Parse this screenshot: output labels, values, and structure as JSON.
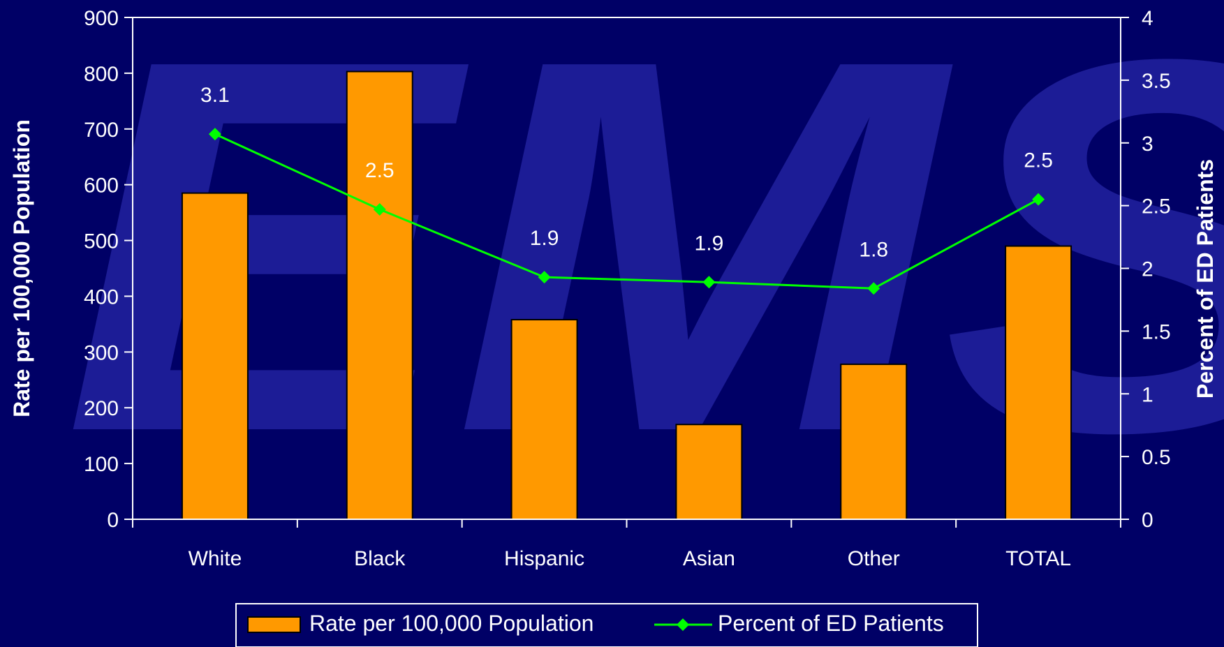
{
  "watermark_text": "EMS",
  "chart_data": {
    "type": "bar",
    "categories": [
      "White",
      "Black",
      "Hispanic",
      "Asian",
      "Other",
      "TOTAL"
    ],
    "series": [
      {
        "name": "Rate per 100,000 Population",
        "type": "bar",
        "axis": "left",
        "values": [
          585,
          803,
          358,
          170,
          278,
          490
        ]
      },
      {
        "name": "Percent of ED Patients",
        "type": "line",
        "axis": "right",
        "values": [
          3.07,
          2.47,
          1.93,
          1.89,
          1.84,
          2.55
        ],
        "labels": [
          "3.1",
          "2.5",
          "1.9",
          "1.9",
          "1.8",
          "2.5"
        ]
      }
    ],
    "ylabel": "Rate per 100,000 Population",
    "y2label": "Percent of ED Patients",
    "ylim": [
      0,
      900
    ],
    "y2lim": [
      0,
      4
    ],
    "yticks": [
      "0",
      "100",
      "200",
      "300",
      "400",
      "500",
      "600",
      "700",
      "800",
      "900"
    ],
    "y2ticks": [
      "0",
      "0.5",
      "1",
      "1.5",
      "2",
      "2.5",
      "3",
      "3.5",
      "4"
    ],
    "legend_position": "bottom",
    "colors": {
      "bar": "#ff9900",
      "line": "#00ff00",
      "background": "#000066",
      "watermark": "#1c1c96"
    }
  }
}
